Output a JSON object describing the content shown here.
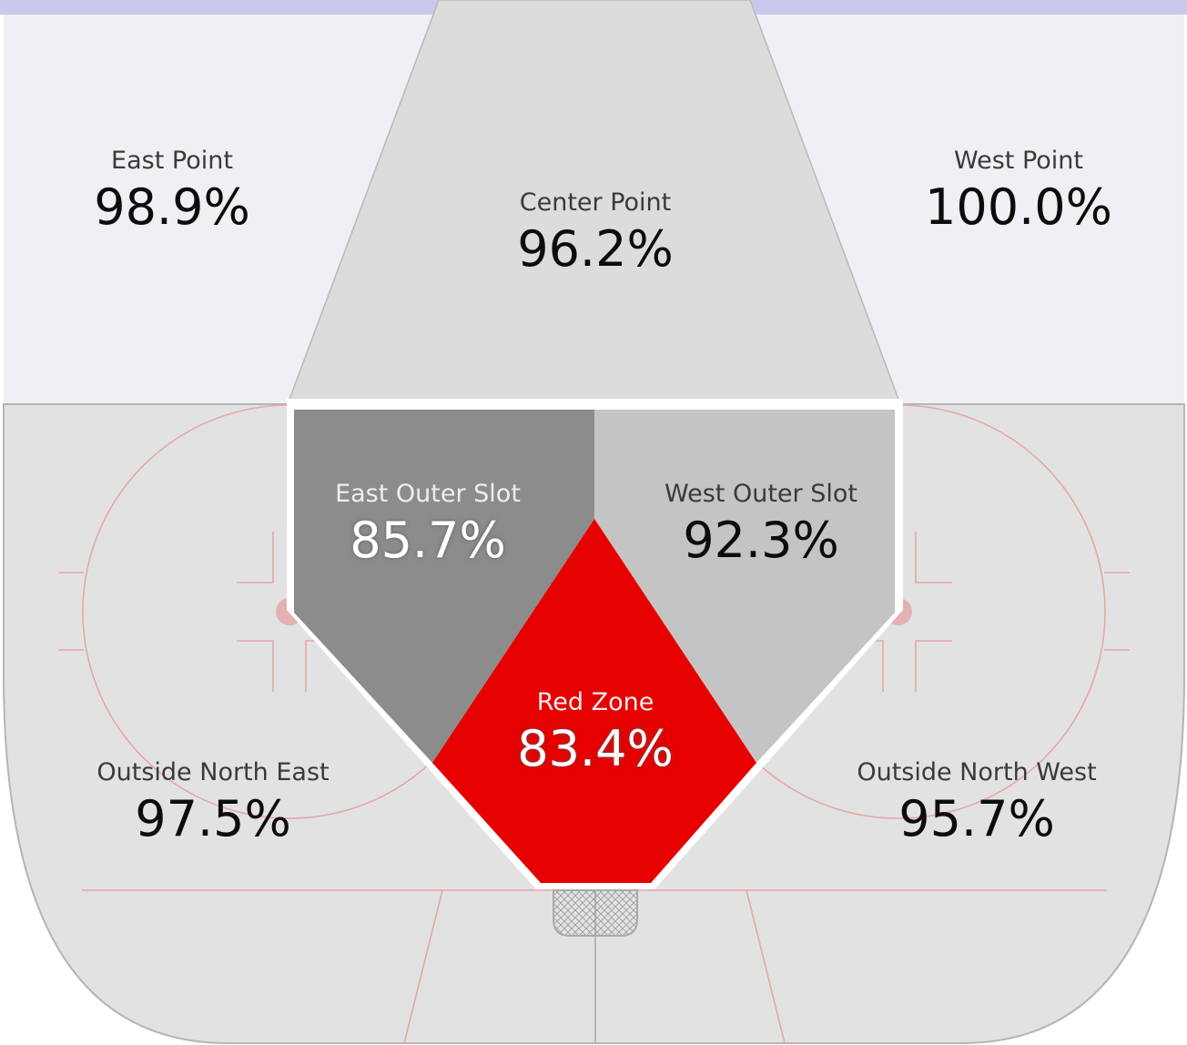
{
  "colors": {
    "red_zone": "#e60000",
    "east_outer_slot": "#8c8c8c",
    "west_outer_slot": "#c4c4c5",
    "center_point": "#dcdcdd",
    "points": "#eff0f3",
    "outside": "#e2e2e3",
    "top_bar": "#c9c9ee",
    "rink_lines": "#e8a6a6"
  },
  "zones": {
    "east_point": {
      "label": "East Point",
      "value": "98.9%"
    },
    "center_point": {
      "label": "Center Point",
      "value": "96.2%"
    },
    "west_point": {
      "label": "West Point",
      "value": "100.0%"
    },
    "east_outer_slot": {
      "label": "East Outer Slot",
      "value": "85.7%"
    },
    "west_outer_slot": {
      "label": "West Outer Slot",
      "value": "92.3%"
    },
    "red_zone": {
      "label": "Red Zone",
      "value": "83.4%"
    },
    "outside_north_east": {
      "label": "Outside North East",
      "value": "97.5%"
    },
    "outside_north_west": {
      "label": "Outside North West",
      "value": "95.7%"
    }
  }
}
